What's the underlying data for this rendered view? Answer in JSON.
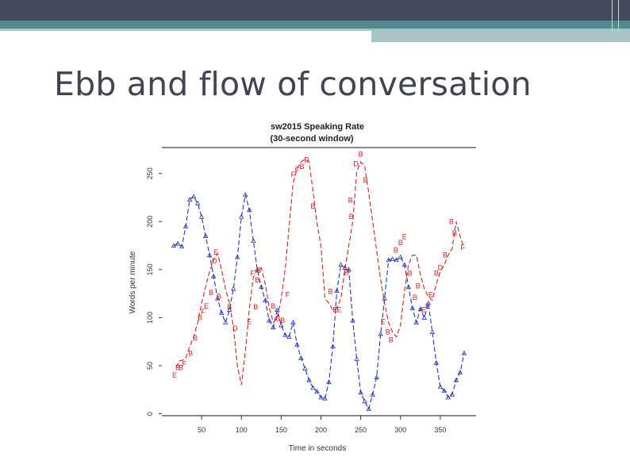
{
  "slide": {
    "title": "Ebb and flow of conversation"
  },
  "chart_data": {
    "type": "line",
    "title": "sw2015 Speaking Rate",
    "subtitle": "(30-second window)",
    "xlabel": "Time in seconds",
    "ylabel": "Words per minute",
    "xlim": [
      0,
      395
    ],
    "ylim": [
      -2,
      277
    ],
    "x_ticks": [
      50,
      100,
      150,
      200,
      250,
      300,
      350
    ],
    "y_ticks": [
      0,
      50,
      100,
      150,
      200,
      250
    ],
    "series": [
      {
        "color": "#2233bb",
        "marker": "triangle",
        "points": [
          [
            15,
            175
          ],
          [
            20,
            177
          ],
          [
            25,
            174
          ],
          [
            30,
            195
          ],
          [
            35,
            223
          ],
          [
            40,
            226
          ],
          [
            45,
            219
          ],
          [
            50,
            205
          ],
          [
            55,
            185
          ],
          [
            60,
            165
          ],
          [
            65,
            143
          ],
          [
            70,
            120
          ],
          [
            75,
            105
          ],
          [
            80,
            95
          ],
          [
            85,
            108
          ],
          [
            90,
            130
          ],
          [
            95,
            163
          ],
          [
            100,
            205
          ],
          [
            105,
            228
          ],
          [
            110,
            212
          ],
          [
            115,
            180
          ],
          [
            120,
            150
          ],
          [
            125,
            132
          ],
          [
            130,
            118
          ],
          [
            135,
            97
          ],
          [
            140,
            90
          ],
          [
            145,
            108
          ],
          [
            150,
            92
          ],
          [
            155,
            82
          ],
          [
            160,
            80
          ],
          [
            165,
            95
          ],
          [
            170,
            72
          ],
          [
            175,
            58
          ],
          [
            180,
            47
          ],
          [
            185,
            35
          ],
          [
            190,
            27
          ],
          [
            195,
            23
          ],
          [
            200,
            17
          ],
          [
            205,
            16
          ],
          [
            210,
            33
          ],
          [
            215,
            70
          ],
          [
            220,
            128
          ],
          [
            225,
            155
          ],
          [
            230,
            152
          ],
          [
            235,
            150
          ],
          [
            240,
            97
          ],
          [
            245,
            57
          ],
          [
            250,
            22
          ],
          [
            255,
            13
          ],
          [
            260,
            5
          ],
          [
            265,
            20
          ],
          [
            270,
            38
          ],
          [
            275,
            83
          ],
          [
            280,
            120
          ],
          [
            285,
            160
          ],
          [
            290,
            161
          ],
          [
            295,
            160
          ],
          [
            300,
            163
          ],
          [
            305,
            155
          ],
          [
            310,
            132
          ],
          [
            315,
            110
          ],
          [
            320,
            95
          ],
          [
            325,
            109
          ],
          [
            330,
            100
          ],
          [
            335,
            115
          ],
          [
            340,
            85
          ],
          [
            345,
            53
          ],
          [
            350,
            28
          ],
          [
            355,
            24
          ],
          [
            360,
            17
          ],
          [
            365,
            20
          ],
          [
            370,
            35
          ],
          [
            375,
            43
          ],
          [
            380,
            63
          ]
        ]
      },
      {
        "color": "#cc2222",
        "marker": "letter",
        "points": [
          [
            18,
            48
          ],
          [
            22,
            55
          ],
          [
            27,
            56
          ],
          [
            30,
            58
          ],
          [
            35,
            70
          ],
          [
            40,
            80
          ],
          [
            45,
            95
          ],
          [
            50,
            115
          ],
          [
            55,
            132
          ],
          [
            60,
            148
          ],
          [
            65,
            160
          ],
          [
            70,
            167
          ],
          [
            75,
            150
          ],
          [
            80,
            130
          ],
          [
            85,
            115
          ],
          [
            90,
            90
          ],
          [
            95,
            50
          ],
          [
            100,
            30
          ],
          [
            105,
            65
          ],
          [
            110,
            110
          ],
          [
            115,
            142
          ],
          [
            120,
            150
          ],
          [
            125,
            152
          ],
          [
            130,
            135
          ],
          [
            135,
            110
          ],
          [
            140,
            95
          ],
          [
            145,
            100
          ],
          [
            150,
            120
          ],
          [
            155,
            150
          ],
          [
            160,
            195
          ],
          [
            165,
            240
          ],
          [
            170,
            255
          ],
          [
            175,
            262
          ],
          [
            180,
            265
          ],
          [
            185,
            262
          ],
          [
            190,
            232
          ],
          [
            195,
            198
          ],
          [
            200,
            175
          ],
          [
            205,
            120
          ],
          [
            210,
            115
          ],
          [
            215,
            108
          ],
          [
            220,
            110
          ],
          [
            225,
            120
          ],
          [
            230,
            150
          ],
          [
            235,
            175
          ],
          [
            240,
            200
          ],
          [
            245,
            252
          ],
          [
            250,
            262
          ],
          [
            255,
            258
          ],
          [
            260,
            230
          ],
          [
            265,
            200
          ],
          [
            270,
            170
          ],
          [
            275,
            140
          ],
          [
            280,
            115
          ],
          [
            285,
            95
          ],
          [
            290,
            85
          ],
          [
            295,
            80
          ],
          [
            300,
            92
          ],
          [
            305,
            128
          ],
          [
            310,
            155
          ],
          [
            315,
            165
          ],
          [
            320,
            165
          ],
          [
            325,
            145
          ],
          [
            330,
            130
          ],
          [
            335,
            122
          ],
          [
            340,
            118
          ],
          [
            345,
            135
          ],
          [
            350,
            148
          ],
          [
            355,
            155
          ],
          [
            360,
            165
          ],
          [
            365,
            172
          ],
          [
            370,
            200
          ],
          [
            375,
            185
          ],
          [
            380,
            172
          ]
        ]
      }
    ],
    "red_marker_labels": [
      {
        "x": 16,
        "y": 40,
        "t": "E"
      },
      {
        "x": 20,
        "y": 48,
        "t": "B"
      },
      {
        "x": 24,
        "y": 48,
        "t": "B"
      },
      {
        "x": 28,
        "y": 52,
        "t": "F"
      },
      {
        "x": 36,
        "y": 63,
        "t": "B"
      },
      {
        "x": 42,
        "y": 79,
        "t": "B"
      },
      {
        "x": 48,
        "y": 100,
        "t": "B"
      },
      {
        "x": 52,
        "y": 106,
        "t": "F"
      },
      {
        "x": 56,
        "y": 112,
        "t": "E"
      },
      {
        "x": 62,
        "y": 126,
        "t": "B"
      },
      {
        "x": 66,
        "y": 159,
        "t": "D"
      },
      {
        "x": 68,
        "y": 168,
        "t": "E"
      },
      {
        "x": 72,
        "y": 122,
        "t": "B"
      },
      {
        "x": 85,
        "y": 111,
        "t": "B"
      },
      {
        "x": 92,
        "y": 89,
        "t": "D"
      },
      {
        "x": 110,
        "y": 96,
        "t": "E"
      },
      {
        "x": 114,
        "y": 146,
        "t": "F"
      },
      {
        "x": 118,
        "y": 111,
        "t": "B"
      },
      {
        "x": 120,
        "y": 139,
        "t": "B"
      },
      {
        "x": 122,
        "y": 149,
        "t": "B"
      },
      {
        "x": 140,
        "y": 112,
        "t": "B"
      },
      {
        "x": 146,
        "y": 99,
        "t": "B"
      },
      {
        "x": 152,
        "y": 97,
        "t": "B"
      },
      {
        "x": 158,
        "y": 124,
        "t": "F"
      },
      {
        "x": 165,
        "y": 249,
        "t": "F"
      },
      {
        "x": 170,
        "y": 254,
        "t": "F"
      },
      {
        "x": 176,
        "y": 257,
        "t": "B"
      },
      {
        "x": 182,
        "y": 264,
        "t": "D"
      },
      {
        "x": 190,
        "y": 216,
        "t": "B"
      },
      {
        "x": 212,
        "y": 127,
        "t": "B"
      },
      {
        "x": 218,
        "y": 108,
        "t": "E"
      },
      {
        "x": 223,
        "y": 108,
        "t": "E"
      },
      {
        "x": 232,
        "y": 147,
        "t": "B"
      },
      {
        "x": 244,
        "y": 260,
        "t": "D"
      },
      {
        "x": 250,
        "y": 270,
        "t": "B"
      },
      {
        "x": 256,
        "y": 243,
        "t": "B"
      },
      {
        "x": 237,
        "y": 222,
        "t": "B"
      },
      {
        "x": 238,
        "y": 205,
        "t": "B"
      },
      {
        "x": 278,
        "y": 96,
        "t": "E"
      },
      {
        "x": 284,
        "y": 85,
        "t": "B"
      },
      {
        "x": 288,
        "y": 77,
        "t": "B"
      },
      {
        "x": 294,
        "y": 170,
        "t": "B"
      },
      {
        "x": 300,
        "y": 178,
        "t": "B"
      },
      {
        "x": 305,
        "y": 184,
        "t": "E"
      },
      {
        "x": 312,
        "y": 146,
        "t": "B"
      },
      {
        "x": 318,
        "y": 121,
        "t": "B"
      },
      {
        "x": 322,
        "y": 133,
        "t": "B"
      },
      {
        "x": 329,
        "y": 108,
        "t": "E"
      },
      {
        "x": 334,
        "y": 112,
        "t": "E"
      },
      {
        "x": 338,
        "y": 124,
        "t": "E"
      },
      {
        "x": 345,
        "y": 146,
        "t": "B"
      },
      {
        "x": 350,
        "y": 152,
        "t": "D"
      },
      {
        "x": 356,
        "y": 165,
        "t": "B"
      },
      {
        "x": 364,
        "y": 200,
        "t": "B"
      },
      {
        "x": 368,
        "y": 188,
        "t": "B"
      },
      {
        "x": 378,
        "y": 173,
        "t": "F"
      }
    ]
  }
}
